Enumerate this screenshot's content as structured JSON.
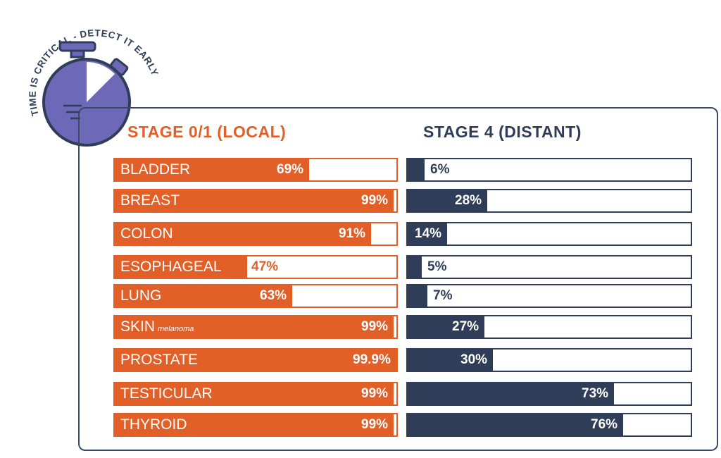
{
  "badge": {
    "text": "TIME IS CRITICAL - DETECT IT EARLY"
  },
  "colors": {
    "local": "#e35f28",
    "distant": "#2f3d58",
    "dial": "#6d69b8",
    "frame": "#3a4a66"
  },
  "chart_data": {
    "type": "bar",
    "orientation": "horizontal",
    "ylim": [
      0,
      100
    ],
    "categories": [
      "BLADDER",
      "BREAST",
      "COLON",
      "ESOPHAGEAL",
      "LUNG",
      "SKIN",
      "PROSTATE",
      "TESTICULAR",
      "THYROID"
    ],
    "category_notes": [
      "",
      "",
      "",
      "",
      "",
      "melanoma",
      "",
      "",
      ""
    ],
    "series": [
      {
        "name": "STAGE 0/1 (LOCAL)",
        "values": [
          69,
          99,
          91,
          47,
          63,
          99,
          99.9,
          99,
          99
        ],
        "labels": [
          "69%",
          "99%",
          "91%",
          "47%",
          "63%",
          "99%",
          "99.9%",
          "99%",
          "99%"
        ]
      },
      {
        "name": "STAGE 4 (DISTANT)",
        "values": [
          6,
          28,
          14,
          5,
          7,
          27,
          30,
          73,
          76
        ],
        "labels": [
          "6%",
          "28%",
          "14%",
          "5%",
          "7%",
          "27%",
          "30%",
          "73%",
          "76%"
        ]
      }
    ]
  }
}
